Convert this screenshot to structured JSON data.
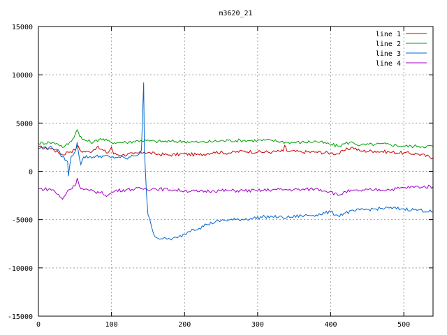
{
  "chart_data": {
    "type": "line",
    "title": "m3620_21",
    "xlabel": "",
    "ylabel": "",
    "xlim": [
      0,
      540
    ],
    "ylim": [
      -15000,
      15000
    ],
    "xticks": [
      0,
      100,
      200,
      300,
      400,
      500
    ],
    "yticks": [
      -15000,
      -10000,
      -5000,
      0,
      5000,
      10000,
      15000
    ],
    "xtick_labels": [
      "0",
      "100",
      "200",
      "300",
      "400",
      "500"
    ],
    "ytick_labels": [
      "-15000",
      "-10000",
      "-5000",
      "0",
      "5000",
      "10000",
      "15000"
    ],
    "grid": true,
    "legend_position": "top-right",
    "series": [
      {
        "name": "line 1",
        "color": "#cc0000",
        "points": [
          [
            0,
            2500
          ],
          [
            20,
            2300
          ],
          [
            33,
            1700
          ],
          [
            40,
            2000
          ],
          [
            50,
            2200
          ],
          [
            53,
            2700
          ],
          [
            58,
            2100
          ],
          [
            70,
            2000
          ],
          [
            80,
            2500
          ],
          [
            85,
            2300
          ],
          [
            95,
            1900
          ],
          [
            100,
            2500
          ],
          [
            103,
            1800
          ],
          [
            115,
            1700
          ],
          [
            130,
            1800
          ],
          [
            145,
            2000
          ],
          [
            160,
            1800
          ],
          [
            180,
            1700
          ],
          [
            200,
            1800
          ],
          [
            220,
            1700
          ],
          [
            240,
            2000
          ],
          [
            260,
            1900
          ],
          [
            280,
            2100
          ],
          [
            300,
            2000
          ],
          [
            320,
            2000
          ],
          [
            335,
            2100
          ],
          [
            337,
            2700
          ],
          [
            340,
            2100
          ],
          [
            360,
            2000
          ],
          [
            380,
            2000
          ],
          [
            400,
            1900
          ],
          [
            410,
            1800
          ],
          [
            420,
            2200
          ],
          [
            430,
            2500
          ],
          [
            440,
            2100
          ],
          [
            460,
            2100
          ],
          [
            480,
            2000
          ],
          [
            500,
            1900
          ],
          [
            520,
            1800
          ],
          [
            540,
            1400
          ]
        ]
      },
      {
        "name": "line 2",
        "color": "#00a000",
        "points": [
          [
            0,
            2900
          ],
          [
            15,
            3000
          ],
          [
            25,
            2900
          ],
          [
            35,
            2500
          ],
          [
            45,
            3100
          ],
          [
            53,
            4300
          ],
          [
            60,
            3300
          ],
          [
            75,
            3000
          ],
          [
            85,
            3400
          ],
          [
            100,
            3000
          ],
          [
            120,
            3000
          ],
          [
            140,
            3200
          ],
          [
            160,
            3100
          ],
          [
            180,
            3100
          ],
          [
            200,
            3100
          ],
          [
            220,
            3000
          ],
          [
            240,
            3100
          ],
          [
            260,
            3200
          ],
          [
            280,
            3200
          ],
          [
            300,
            3200
          ],
          [
            320,
            3200
          ],
          [
            340,
            3000
          ],
          [
            360,
            3000
          ],
          [
            380,
            3100
          ],
          [
            400,
            2800
          ],
          [
            410,
            2600
          ],
          [
            420,
            2900
          ],
          [
            430,
            3000
          ],
          [
            440,
            2700
          ],
          [
            460,
            2800
          ],
          [
            480,
            2800
          ],
          [
            500,
            2600
          ],
          [
            520,
            2600
          ],
          [
            540,
            2600
          ]
        ]
      },
      {
        "name": "line 3",
        "color": "#0066cc",
        "points": [
          [
            0,
            2400
          ],
          [
            15,
            2500
          ],
          [
            25,
            2300
          ],
          [
            33,
            1500
          ],
          [
            40,
            1000
          ],
          [
            41,
            -500
          ],
          [
            45,
            1600
          ],
          [
            50,
            2000
          ],
          [
            53,
            3000
          ],
          [
            56,
            1400
          ],
          [
            58,
            700
          ],
          [
            62,
            1500
          ],
          [
            75,
            1500
          ],
          [
            90,
            1600
          ],
          [
            100,
            1400
          ],
          [
            110,
            1500
          ],
          [
            120,
            1300
          ],
          [
            130,
            1600
          ],
          [
            138,
            1800
          ],
          [
            141,
            2200
          ],
          [
            143,
            6800
          ],
          [
            144,
            9200
          ],
          [
            145,
            2300
          ],
          [
            148,
            -2500
          ],
          [
            150,
            -4500
          ],
          [
            155,
            -5800
          ],
          [
            160,
            -6800
          ],
          [
            170,
            -7000
          ],
          [
            180,
            -7000
          ],
          [
            190,
            -6900
          ],
          [
            200,
            -6500
          ],
          [
            210,
            -6000
          ],
          [
            220,
            -5900
          ],
          [
            230,
            -5500
          ],
          [
            250,
            -5100
          ],
          [
            270,
            -5000
          ],
          [
            290,
            -4900
          ],
          [
            310,
            -4700
          ],
          [
            320,
            -4700
          ],
          [
            340,
            -4800
          ],
          [
            360,
            -4600
          ],
          [
            380,
            -4500
          ],
          [
            400,
            -4200
          ],
          [
            410,
            -4600
          ],
          [
            420,
            -4300
          ],
          [
            440,
            -4000
          ],
          [
            460,
            -3900
          ],
          [
            480,
            -3800
          ],
          [
            500,
            -3900
          ],
          [
            520,
            -4000
          ],
          [
            540,
            -4200
          ]
        ]
      },
      {
        "name": "line 4",
        "color": "#a000c8",
        "points": [
          [
            0,
            -1800
          ],
          [
            20,
            -1900
          ],
          [
            33,
            -2900
          ],
          [
            40,
            -2000
          ],
          [
            50,
            -1500
          ],
          [
            53,
            -700
          ],
          [
            58,
            -1800
          ],
          [
            70,
            -2000
          ],
          [
            85,
            -2200
          ],
          [
            95,
            -2500
          ],
          [
            105,
            -2000
          ],
          [
            120,
            -1900
          ],
          [
            140,
            -1800
          ],
          [
            160,
            -1800
          ],
          [
            180,
            -1900
          ],
          [
            200,
            -2000
          ],
          [
            220,
            -2100
          ],
          [
            240,
            -2000
          ],
          [
            260,
            -2000
          ],
          [
            280,
            -2000
          ],
          [
            300,
            -2000
          ],
          [
            320,
            -1900
          ],
          [
            340,
            -1900
          ],
          [
            360,
            -1900
          ],
          [
            380,
            -1800
          ],
          [
            400,
            -2100
          ],
          [
            410,
            -2500
          ],
          [
            420,
            -2100
          ],
          [
            440,
            -2000
          ],
          [
            460,
            -1900
          ],
          [
            480,
            -1900
          ],
          [
            500,
            -1700
          ],
          [
            520,
            -1600
          ],
          [
            540,
            -1600
          ]
        ]
      }
    ]
  }
}
